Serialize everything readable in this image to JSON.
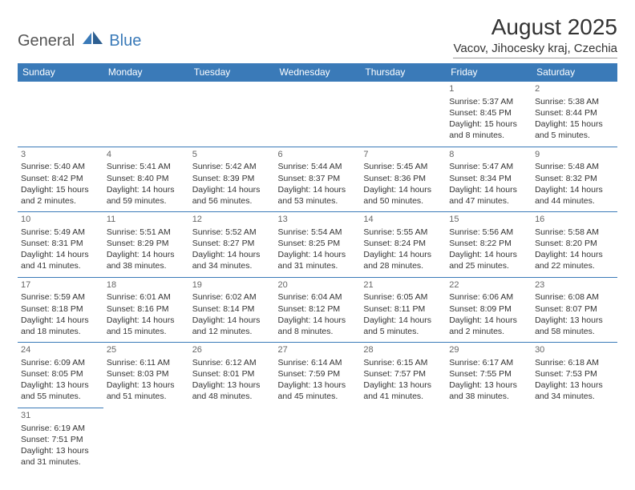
{
  "logo": {
    "text1": "General",
    "text2": "Blue",
    "icon_color": "#3a7ab8"
  },
  "title": "August 2025",
  "location": "Vacov, Jihocesky kraj, Czechia",
  "header_bg": "#3a7ab8",
  "header_fg": "#ffffff",
  "border_color": "#3a7ab8",
  "text_color": "#333333",
  "columns": [
    "Sunday",
    "Monday",
    "Tuesday",
    "Wednesday",
    "Thursday",
    "Friday",
    "Saturday"
  ],
  "weeks": [
    [
      null,
      null,
      null,
      null,
      null,
      {
        "d": "1",
        "sr": "Sunrise: 5:37 AM",
        "ss": "Sunset: 8:45 PM",
        "dl1": "Daylight: 15 hours",
        "dl2": "and 8 minutes."
      },
      {
        "d": "2",
        "sr": "Sunrise: 5:38 AM",
        "ss": "Sunset: 8:44 PM",
        "dl1": "Daylight: 15 hours",
        "dl2": "and 5 minutes."
      }
    ],
    [
      {
        "d": "3",
        "sr": "Sunrise: 5:40 AM",
        "ss": "Sunset: 8:42 PM",
        "dl1": "Daylight: 15 hours",
        "dl2": "and 2 minutes."
      },
      {
        "d": "4",
        "sr": "Sunrise: 5:41 AM",
        "ss": "Sunset: 8:40 PM",
        "dl1": "Daylight: 14 hours",
        "dl2": "and 59 minutes."
      },
      {
        "d": "5",
        "sr": "Sunrise: 5:42 AM",
        "ss": "Sunset: 8:39 PM",
        "dl1": "Daylight: 14 hours",
        "dl2": "and 56 minutes."
      },
      {
        "d": "6",
        "sr": "Sunrise: 5:44 AM",
        "ss": "Sunset: 8:37 PM",
        "dl1": "Daylight: 14 hours",
        "dl2": "and 53 minutes."
      },
      {
        "d": "7",
        "sr": "Sunrise: 5:45 AM",
        "ss": "Sunset: 8:36 PM",
        "dl1": "Daylight: 14 hours",
        "dl2": "and 50 minutes."
      },
      {
        "d": "8",
        "sr": "Sunrise: 5:47 AM",
        "ss": "Sunset: 8:34 PM",
        "dl1": "Daylight: 14 hours",
        "dl2": "and 47 minutes."
      },
      {
        "d": "9",
        "sr": "Sunrise: 5:48 AM",
        "ss": "Sunset: 8:32 PM",
        "dl1": "Daylight: 14 hours",
        "dl2": "and 44 minutes."
      }
    ],
    [
      {
        "d": "10",
        "sr": "Sunrise: 5:49 AM",
        "ss": "Sunset: 8:31 PM",
        "dl1": "Daylight: 14 hours",
        "dl2": "and 41 minutes."
      },
      {
        "d": "11",
        "sr": "Sunrise: 5:51 AM",
        "ss": "Sunset: 8:29 PM",
        "dl1": "Daylight: 14 hours",
        "dl2": "and 38 minutes."
      },
      {
        "d": "12",
        "sr": "Sunrise: 5:52 AM",
        "ss": "Sunset: 8:27 PM",
        "dl1": "Daylight: 14 hours",
        "dl2": "and 34 minutes."
      },
      {
        "d": "13",
        "sr": "Sunrise: 5:54 AM",
        "ss": "Sunset: 8:25 PM",
        "dl1": "Daylight: 14 hours",
        "dl2": "and 31 minutes."
      },
      {
        "d": "14",
        "sr": "Sunrise: 5:55 AM",
        "ss": "Sunset: 8:24 PM",
        "dl1": "Daylight: 14 hours",
        "dl2": "and 28 minutes."
      },
      {
        "d": "15",
        "sr": "Sunrise: 5:56 AM",
        "ss": "Sunset: 8:22 PM",
        "dl1": "Daylight: 14 hours",
        "dl2": "and 25 minutes."
      },
      {
        "d": "16",
        "sr": "Sunrise: 5:58 AM",
        "ss": "Sunset: 8:20 PM",
        "dl1": "Daylight: 14 hours",
        "dl2": "and 22 minutes."
      }
    ],
    [
      {
        "d": "17",
        "sr": "Sunrise: 5:59 AM",
        "ss": "Sunset: 8:18 PM",
        "dl1": "Daylight: 14 hours",
        "dl2": "and 18 minutes."
      },
      {
        "d": "18",
        "sr": "Sunrise: 6:01 AM",
        "ss": "Sunset: 8:16 PM",
        "dl1": "Daylight: 14 hours",
        "dl2": "and 15 minutes."
      },
      {
        "d": "19",
        "sr": "Sunrise: 6:02 AM",
        "ss": "Sunset: 8:14 PM",
        "dl1": "Daylight: 14 hours",
        "dl2": "and 12 minutes."
      },
      {
        "d": "20",
        "sr": "Sunrise: 6:04 AM",
        "ss": "Sunset: 8:12 PM",
        "dl1": "Daylight: 14 hours",
        "dl2": "and 8 minutes."
      },
      {
        "d": "21",
        "sr": "Sunrise: 6:05 AM",
        "ss": "Sunset: 8:11 PM",
        "dl1": "Daylight: 14 hours",
        "dl2": "and 5 minutes."
      },
      {
        "d": "22",
        "sr": "Sunrise: 6:06 AM",
        "ss": "Sunset: 8:09 PM",
        "dl1": "Daylight: 14 hours",
        "dl2": "and 2 minutes."
      },
      {
        "d": "23",
        "sr": "Sunrise: 6:08 AM",
        "ss": "Sunset: 8:07 PM",
        "dl1": "Daylight: 13 hours",
        "dl2": "and 58 minutes."
      }
    ],
    [
      {
        "d": "24",
        "sr": "Sunrise: 6:09 AM",
        "ss": "Sunset: 8:05 PM",
        "dl1": "Daylight: 13 hours",
        "dl2": "and 55 minutes."
      },
      {
        "d": "25",
        "sr": "Sunrise: 6:11 AM",
        "ss": "Sunset: 8:03 PM",
        "dl1": "Daylight: 13 hours",
        "dl2": "and 51 minutes."
      },
      {
        "d": "26",
        "sr": "Sunrise: 6:12 AM",
        "ss": "Sunset: 8:01 PM",
        "dl1": "Daylight: 13 hours",
        "dl2": "and 48 minutes."
      },
      {
        "d": "27",
        "sr": "Sunrise: 6:14 AM",
        "ss": "Sunset: 7:59 PM",
        "dl1": "Daylight: 13 hours",
        "dl2": "and 45 minutes."
      },
      {
        "d": "28",
        "sr": "Sunrise: 6:15 AM",
        "ss": "Sunset: 7:57 PM",
        "dl1": "Daylight: 13 hours",
        "dl2": "and 41 minutes."
      },
      {
        "d": "29",
        "sr": "Sunrise: 6:17 AM",
        "ss": "Sunset: 7:55 PM",
        "dl1": "Daylight: 13 hours",
        "dl2": "and 38 minutes."
      },
      {
        "d": "30",
        "sr": "Sunrise: 6:18 AM",
        "ss": "Sunset: 7:53 PM",
        "dl1": "Daylight: 13 hours",
        "dl2": "and 34 minutes."
      }
    ],
    [
      {
        "d": "31",
        "sr": "Sunrise: 6:19 AM",
        "ss": "Sunset: 7:51 PM",
        "dl1": "Daylight: 13 hours",
        "dl2": "and 31 minutes."
      },
      null,
      null,
      null,
      null,
      null,
      null
    ]
  ]
}
